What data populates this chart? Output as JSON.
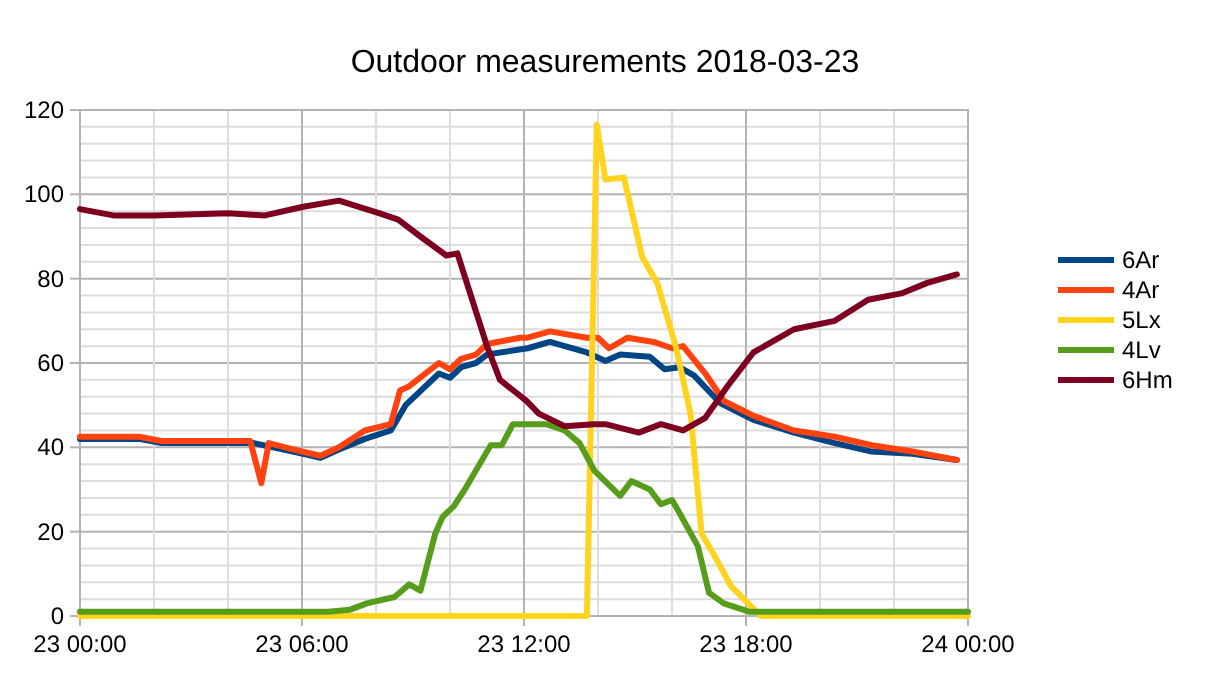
{
  "chart_data": {
    "type": "line",
    "title": "Outdoor measurements 2018-03-23",
    "legend": "right",
    "grid": true,
    "marker": "none",
    "line_style": "solid",
    "xlim": [
      "2018-03-23T00:00",
      "2018-03-24T00:00"
    ],
    "ylim": [
      0,
      120
    ],
    "xticks": [
      {
        "value": "2018-03-23T00:00",
        "label": "23 00:00"
      },
      {
        "value": "2018-03-23T02:00",
        "label": null
      },
      {
        "value": "2018-03-23T04:00",
        "label": null
      },
      {
        "value": "2018-03-23T06:00",
        "label": "23 06:00"
      },
      {
        "value": "2018-03-23T08:00",
        "label": null
      },
      {
        "value": "2018-03-23T10:00",
        "label": null
      },
      {
        "value": "2018-03-23T12:00",
        "label": "23 12:00"
      },
      {
        "value": "2018-03-23T14:00",
        "label": null
      },
      {
        "value": "2018-03-23T16:00",
        "label": null
      },
      {
        "value": "2018-03-23T18:00",
        "label": "23 18:00"
      },
      {
        "value": "2018-03-23T20:00",
        "label": null
      },
      {
        "value": "2018-03-23T22:00",
        "label": null
      },
      {
        "value": "2018-03-24T00:00",
        "label": "24 00:00"
      }
    ],
    "yticks": [
      0,
      {
        "value": 4,
        "label": null
      },
      {
        "value": 8,
        "label": null
      },
      {
        "value": 12,
        "label": null
      },
      {
        "value": 16,
        "label": null
      },
      20,
      {
        "value": 24,
        "label": null
      },
      {
        "value": 28,
        "label": null
      },
      {
        "value": 32,
        "label": null
      },
      {
        "value": 36,
        "label": null
      },
      40,
      {
        "value": 44,
        "label": null
      },
      {
        "value": 48,
        "label": null
      },
      {
        "value": 52,
        "label": null
      },
      {
        "value": 56,
        "label": null
      },
      60,
      {
        "value": 64,
        "label": null
      },
      {
        "value": 68,
        "label": null
      },
      {
        "value": 72,
        "label": null
      },
      {
        "value": 76,
        "label": null
      },
      80,
      {
        "value": 84,
        "label": null
      },
      {
        "value": 88,
        "label": null
      },
      {
        "value": 92,
        "label": null
      },
      {
        "value": 96,
        "label": null
      },
      100,
      {
        "value": 104,
        "label": null
      },
      {
        "value": 108,
        "label": null
      },
      {
        "value": 112,
        "label": null
      },
      {
        "value": 116,
        "label": null
      },
      120
    ],
    "series": [
      {
        "name": "6Ar",
        "color": "#004586",
        "x": [
          "2018-03-23T00:00",
          "2018-03-23T01:36",
          "2018-03-23T02:12",
          "2018-03-23T04:42",
          "2018-03-23T06:00",
          "2018-03-23T06:30",
          "2018-03-23T07:00",
          "2018-03-23T07:42",
          "2018-03-23T08:24",
          "2018-03-23T08:48",
          "2018-03-23T09:42",
          "2018-03-23T10:00",
          "2018-03-23T10:18",
          "2018-03-23T10:42",
          "2018-03-23T11:00",
          "2018-03-23T12:06",
          "2018-03-23T12:42",
          "2018-03-23T13:42",
          "2018-03-23T14:12",
          "2018-03-23T14:36",
          "2018-03-23T15:24",
          "2018-03-23T15:48",
          "2018-03-23T16:12",
          "2018-03-23T16:36",
          "2018-03-23T17:18",
          "2018-03-23T18:12",
          "2018-03-23T19:18",
          "2018-03-23T20:24",
          "2018-03-23T21:24",
          "2018-03-23T22:30",
          "2018-03-23T23:42"
        ],
        "values": [
          42,
          42,
          41,
          41,
          38.5,
          37.5,
          39.5,
          42,
          44,
          50,
          57.5,
          56.5,
          59,
          60,
          62,
          63.5,
          65,
          62.5,
          60.5,
          62,
          61.5,
          58.5,
          59,
          57,
          50.5,
          46.5,
          43.5,
          41,
          39,
          38.5,
          37
        ]
      },
      {
        "name": "4Ar",
        "color": "#ff420e",
        "x": [
          "2018-03-23T00:00",
          "2018-03-23T01:36",
          "2018-03-23T02:12",
          "2018-03-23T04:36",
          "2018-03-23T04:54",
          "2018-03-23T05:06",
          "2018-03-23T06:00",
          "2018-03-23T06:30",
          "2018-03-23T07:00",
          "2018-03-23T07:42",
          "2018-03-23T08:24",
          "2018-03-23T08:39",
          "2018-03-23T08:54",
          "2018-03-23T09:42",
          "2018-03-23T10:00",
          "2018-03-23T10:18",
          "2018-03-23T10:42",
          "2018-03-23T11:00",
          "2018-03-23T11:54",
          "2018-03-23T12:06",
          "2018-03-23T12:42",
          "2018-03-23T13:42",
          "2018-03-23T14:00",
          "2018-03-23T14:18",
          "2018-03-23T14:48",
          "2018-03-23T15:30",
          "2018-03-23T16:00",
          "2018-03-23T16:18",
          "2018-03-23T16:54",
          "2018-03-23T17:24",
          "2018-03-23T18:12",
          "2018-03-23T19:18",
          "2018-03-23T20:24",
          "2018-03-23T21:24",
          "2018-03-23T22:30",
          "2018-03-23T23:42"
        ],
        "values": [
          42.5,
          42.5,
          41.5,
          41.5,
          31.5,
          41,
          39,
          38,
          40,
          44,
          45.5,
          53.5,
          54.5,
          60,
          58.5,
          61,
          62,
          64.5,
          66,
          66,
          67.5,
          66,
          66,
          63.5,
          66,
          65,
          63.5,
          64,
          57.5,
          51,
          47.5,
          44,
          42.5,
          40.5,
          39,
          37
        ]
      },
      {
        "name": "5Lx",
        "color": "#ffd320",
        "x": [
          "2018-03-23T00:00",
          "2018-03-23T13:42",
          "2018-03-23T13:58",
          "2018-03-23T14:12",
          "2018-03-23T14:42",
          "2018-03-23T15:12",
          "2018-03-23T15:36",
          "2018-03-23T16:06",
          "2018-03-23T16:30",
          "2018-03-23T16:48",
          "2018-03-23T17:12",
          "2018-03-23T17:36",
          "2018-03-23T18:24",
          "2018-03-24T00:00"
        ],
        "values": [
          0,
          0,
          116.5,
          103.5,
          104,
          85,
          79,
          64,
          48,
          19.5,
          13.5,
          7,
          0,
          0
        ]
      },
      {
        "name": "4Lv",
        "color": "#579d1c",
        "x": [
          "2018-03-23T00:00",
          "2018-03-23T06:42",
          "2018-03-23T07:18",
          "2018-03-23T07:45",
          "2018-03-23T08:30",
          "2018-03-23T08:54",
          "2018-03-23T09:12",
          "2018-03-23T09:36",
          "2018-03-23T09:48",
          "2018-03-23T10:06",
          "2018-03-23T10:24",
          "2018-03-23T10:42",
          "2018-03-23T11:06",
          "2018-03-23T11:24",
          "2018-03-23T11:42",
          "2018-03-23T12:36",
          "2018-03-23T13:06",
          "2018-03-23T13:30",
          "2018-03-23T13:54",
          "2018-03-23T14:36",
          "2018-03-23T14:54",
          "2018-03-23T15:24",
          "2018-03-23T15:42",
          "2018-03-23T16:00",
          "2018-03-23T16:12",
          "2018-03-23T16:42",
          "2018-03-23T17:00",
          "2018-03-23T17:24",
          "2018-03-23T18:06",
          "2018-03-24T00:00"
        ],
        "values": [
          1,
          1,
          1.5,
          3,
          4.5,
          7.5,
          6,
          19.5,
          23.5,
          26,
          30,
          34.5,
          40.5,
          40.5,
          45.5,
          45.5,
          44,
          41,
          34.5,
          28.5,
          32,
          30,
          26.5,
          27.5,
          24.5,
          16.5,
          5.5,
          3,
          1,
          1
        ]
      },
      {
        "name": "6Hm",
        "color": "#7e0021",
        "x": [
          "2018-03-23T00:00",
          "2018-03-23T00:54",
          "2018-03-23T02:00",
          "2018-03-23T04:00",
          "2018-03-23T05:00",
          "2018-03-23T06:00",
          "2018-03-23T07:00",
          "2018-03-23T08:06",
          "2018-03-23T08:36",
          "2018-03-23T09:12",
          "2018-03-23T09:54",
          "2018-03-23T10:12",
          "2018-03-23T10:36",
          "2018-03-23T11:00",
          "2018-03-23T11:21",
          "2018-03-23T12:04",
          "2018-03-23T12:24",
          "2018-03-23T13:06",
          "2018-03-23T13:54",
          "2018-03-23T14:12",
          "2018-03-23T15:06",
          "2018-03-23T15:42",
          "2018-03-23T16:18",
          "2018-03-23T16:54",
          "2018-03-23T17:30",
          "2018-03-23T18:12",
          "2018-03-23T19:18",
          "2018-03-23T20:24",
          "2018-03-23T21:18",
          "2018-03-23T22:12",
          "2018-03-23T22:54",
          "2018-03-23T23:42"
        ],
        "values": [
          96.5,
          95,
          95,
          95.5,
          95,
          97,
          98.5,
          95.5,
          94,
          90,
          85.5,
          86,
          75,
          64,
          56,
          51,
          48,
          45,
          45.5,
          45.5,
          43.5,
          45.5,
          44,
          47,
          54.5,
          62.5,
          68,
          70,
          75,
          76.5,
          79,
          81
        ]
      }
    ]
  }
}
